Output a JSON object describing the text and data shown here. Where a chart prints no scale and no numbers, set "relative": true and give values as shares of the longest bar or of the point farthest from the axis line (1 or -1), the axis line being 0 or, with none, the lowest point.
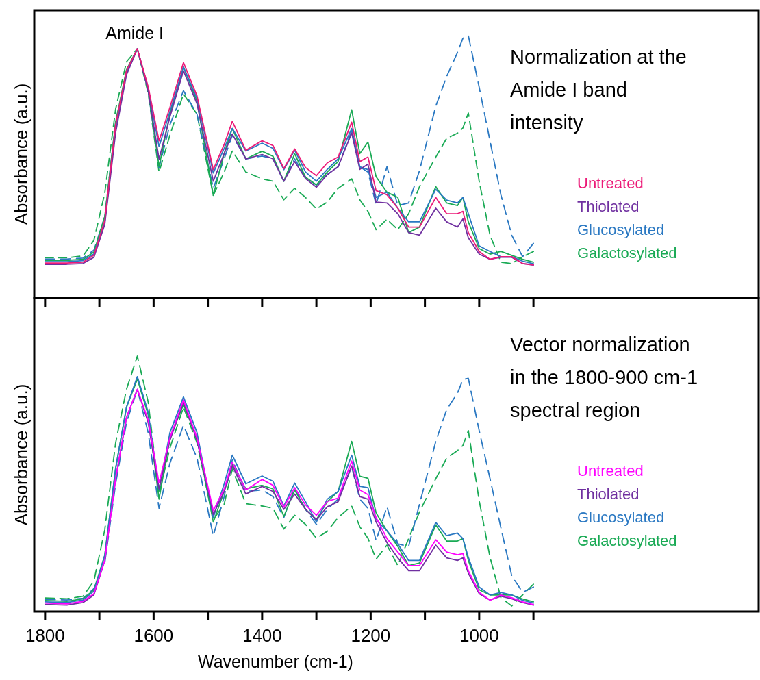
{
  "chart_data": [
    {
      "type": "line",
      "relative": true,
      "ylabel": "Absorbance  (a.u.)",
      "xlim": [
        1820,
        485
      ],
      "xticks": [
        {
          "value": 1800,
          "label": null
        },
        {
          "value": 1700,
          "label": null
        },
        {
          "value": 1600,
          "label": null
        },
        {
          "value": 1500,
          "label": null
        },
        {
          "value": 1400,
          "label": null
        },
        {
          "value": 1300,
          "label": null
        },
        {
          "value": 1200,
          "label": null
        },
        {
          "value": 1100,
          "label": null
        },
        {
          "value": 1000,
          "label": null
        },
        {
          "value": 900,
          "label": null
        }
      ],
      "tick_labels": false,
      "legend": "right",
      "line_style": "solid",
      "annotations": [
        {
          "text": "Amide I",
          "x": 1635,
          "y": 0.95
        },
        "Normalization at the Amide I band intensity"
      ],
      "x": [
        1800,
        1760,
        1730,
        1710,
        1690,
        1670,
        1650,
        1630,
        1610,
        1590,
        1570,
        1545,
        1520,
        1490,
        1470,
        1455,
        1430,
        1400,
        1380,
        1360,
        1340,
        1320,
        1300,
        1280,
        1260,
        1235,
        1220,
        1205,
        1190,
        1170,
        1150,
        1130,
        1110,
        1080,
        1060,
        1040,
        1030,
        1020,
        1000,
        980,
        960,
        940,
        920,
        900
      ],
      "series": [
        {
          "name": "Untreated",
          "color": "#ec1a78",
          "values": [
            0.133,
            0.133,
            0.136,
            0.163,
            0.295,
            0.66,
            0.866,
            0.95,
            0.805,
            0.599,
            0.726,
            0.897,
            0.77,
            0.489,
            0.585,
            0.673,
            0.563,
            0.599,
            0.581,
            0.493,
            0.568,
            0.497,
            0.466,
            0.515,
            0.537,
            0.67,
            0.52,
            0.537,
            0.409,
            0.393,
            0.342,
            0.27,
            0.27,
            0.383,
            0.321,
            0.321,
            0.33,
            0.249,
            0.177,
            0.147,
            0.157,
            0.157,
            0.131,
            0.126
          ]
        },
        {
          "name": "Thiolated",
          "color": "#7030a0",
          "values": [
            0.128,
            0.128,
            0.131,
            0.155,
            0.28,
            0.63,
            0.85,
            0.95,
            0.79,
            0.529,
            0.69,
            0.866,
            0.74,
            0.445,
            0.55,
            0.625,
            0.53,
            0.547,
            0.53,
            0.445,
            0.52,
            0.455,
            0.422,
            0.47,
            0.5,
            0.629,
            0.49,
            0.51,
            0.365,
            0.362,
            0.321,
            0.249,
            0.239,
            0.342,
            0.29,
            0.27,
            0.301,
            0.229,
            0.167,
            0.147,
            0.155,
            0.155,
            0.131,
            0.125
          ]
        },
        {
          "name": "Glucosylated",
          "color": "#2a78c2",
          "values": [
            0.138,
            0.138,
            0.142,
            0.168,
            0.29,
            0.65,
            0.86,
            0.95,
            0.8,
            0.577,
            0.71,
            0.88,
            0.76,
            0.476,
            0.57,
            0.646,
            0.56,
            0.59,
            0.57,
            0.489,
            0.563,
            0.48,
            0.445,
            0.49,
            0.53,
            0.646,
            0.5,
            0.489,
            0.383,
            0.403,
            0.342,
            0.29,
            0.29,
            0.414,
            0.373,
            0.362,
            0.383,
            0.321,
            0.198,
            0.177,
            0.157,
            0.157,
            0.14,
            0.13
          ]
        },
        {
          "name": "Galactosylated",
          "color": "#1aaa55",
          "values": [
            0.143,
            0.143,
            0.147,
            0.175,
            0.31,
            0.67,
            0.87,
            0.95,
            0.79,
            0.501,
            0.7,
            0.88,
            0.75,
            0.391,
            0.55,
            0.646,
            0.53,
            0.559,
            0.54,
            0.445,
            0.55,
            0.46,
            0.431,
            0.48,
            0.52,
            0.717,
            0.55,
            0.594,
            0.462,
            0.403,
            0.383,
            0.249,
            0.27,
            0.424,
            0.362,
            0.352,
            0.383,
            0.29,
            0.188,
            0.167,
            0.177,
            0.162,
            0.147,
            0.136
          ]
        },
        {
          "color": "#2a78c2",
          "line_style": "dashed",
          "values": [
            0.148,
            0.148,
            0.152,
            0.182,
            0.31,
            0.67,
            0.86,
            0.95,
            0.79,
            0.497,
            0.66,
            0.79,
            0.7,
            0.418,
            0.53,
            0.62,
            0.53,
            0.541,
            0.53,
            0.445,
            0.53,
            0.46,
            0.43,
            0.47,
            0.5,
            0.637,
            0.5,
            0.48,
            0.356,
            0.5,
            0.352,
            0.362,
            0.485,
            0.731,
            0.844,
            0.936,
            0.99,
            1.0,
            0.803,
            0.598,
            0.393,
            0.239,
            0.157,
            0.208
          ]
        },
        {
          "color": "#1aaa55",
          "line_style": "dashed",
          "values": [
            0.153,
            0.153,
            0.16,
            0.22,
            0.4,
            0.72,
            0.9,
            0.95,
            0.78,
            0.48,
            0.62,
            0.778,
            0.7,
            0.391,
            0.48,
            0.56,
            0.48,
            0.454,
            0.445,
            0.374,
            0.418,
            0.383,
            0.339,
            0.365,
            0.418,
            0.454,
            0.374,
            0.33,
            0.26,
            0.3,
            0.26,
            0.321,
            0.424,
            0.537,
            0.608,
            0.628,
            0.648,
            0.705,
            0.444,
            0.239,
            0.136,
            0.131,
            0.157,
            0.177
          ]
        }
      ]
    },
    {
      "type": "line",
      "relative": true,
      "xlabel": "Wavenumber (cm-1)",
      "ylabel": "Absorbance  (a.u.)",
      "xlim": [
        1820,
        485
      ],
      "xticks": [
        1800,
        {
          "value": 1700,
          "label": null
        },
        1600,
        {
          "value": 1500,
          "label": null
        },
        1400,
        {
          "value": 1300,
          "label": null
        },
        1200,
        {
          "value": 1100,
          "label": null
        },
        1000,
        {
          "value": 900,
          "label": null
        }
      ],
      "tick_labels": "x",
      "legend": "right",
      "line_style": "solid",
      "annotations": [
        "Vector normalization in the 1800-900 cm-1 spectral region"
      ],
      "x": [
        1800,
        1760,
        1730,
        1710,
        1690,
        1670,
        1650,
        1630,
        1610,
        1590,
        1570,
        1545,
        1520,
        1490,
        1470,
        1455,
        1430,
        1400,
        1380,
        1360,
        1340,
        1320,
        1300,
        1280,
        1260,
        1235,
        1220,
        1205,
        1190,
        1170,
        1150,
        1130,
        1110,
        1080,
        1060,
        1040,
        1030,
        1020,
        1000,
        980,
        960,
        940,
        920,
        900
      ],
      "series": [
        {
          "name": "Untreated",
          "color": "#ff00ff",
          "values": [
            0.033,
            0.03,
            0.04,
            0.07,
            0.2,
            0.52,
            0.76,
            0.87,
            0.75,
            0.503,
            0.68,
            0.828,
            0.68,
            0.395,
            0.48,
            0.585,
            0.476,
            0.517,
            0.494,
            0.409,
            0.485,
            0.417,
            0.377,
            0.431,
            0.444,
            0.589,
            0.476,
            0.458,
            0.368,
            0.286,
            0.233,
            0.18,
            0.18,
            0.281,
            0.233,
            0.222,
            0.227,
            0.16,
            0.075,
            0.044,
            0.065,
            0.054,
            0.038,
            0.027
          ]
        },
        {
          "name": "Thiolated",
          "color": "#7030a0",
          "values": [
            0.028,
            0.025,
            0.035,
            0.065,
            0.2,
            0.52,
            0.76,
            0.87,
            0.74,
            0.48,
            0.67,
            0.82,
            0.67,
            0.38,
            0.47,
            0.57,
            0.46,
            0.49,
            0.47,
            0.4,
            0.46,
            0.4,
            0.36,
            0.41,
            0.43,
            0.57,
            0.45,
            0.44,
            0.35,
            0.27,
            0.21,
            0.16,
            0.16,
            0.26,
            0.21,
            0.2,
            0.21,
            0.15,
            0.07,
            0.045,
            0.06,
            0.05,
            0.035,
            0.025
          ]
        },
        {
          "name": "Glucosylated",
          "color": "#2a78c2",
          "values": [
            0.038,
            0.035,
            0.045,
            0.08,
            0.22,
            0.56,
            0.8,
            0.92,
            0.78,
            0.476,
            0.7,
            0.84,
            0.7,
            0.368,
            0.5,
            0.612,
            0.5,
            0.531,
            0.51,
            0.413,
            0.503,
            0.43,
            0.35,
            0.44,
            0.47,
            0.612,
            0.49,
            0.485,
            0.36,
            0.316,
            0.265,
            0.2,
            0.2,
            0.349,
            0.297,
            0.307,
            0.286,
            0.212,
            0.096,
            0.065,
            0.075,
            0.065,
            0.044,
            0.033
          ]
        },
        {
          "name": "Galactosylated",
          "color": "#1aaa55",
          "values": [
            0.043,
            0.04,
            0.05,
            0.085,
            0.22,
            0.56,
            0.8,
            0.91,
            0.77,
            0.44,
            0.68,
            0.81,
            0.68,
            0.35,
            0.47,
            0.576,
            0.48,
            0.494,
            0.48,
            0.372,
            0.476,
            0.4,
            0.36,
            0.43,
            0.47,
            0.666,
            0.53,
            0.522,
            0.386,
            0.316,
            0.255,
            0.18,
            0.19,
            0.339,
            0.276,
            0.276,
            0.286,
            0.2,
            0.085,
            0.065,
            0.065,
            0.065,
            0.049,
            0.038
          ]
        },
        {
          "color": "#2a78c2",
          "line_style": "dashed",
          "values": [
            0.048,
            0.045,
            0.052,
            0.09,
            0.19,
            0.5,
            0.74,
            0.87,
            0.7,
            0.404,
            0.58,
            0.729,
            0.6,
            0.296,
            0.45,
            0.594,
            0.47,
            0.476,
            0.45,
            0.368,
            0.485,
            0.4,
            0.341,
            0.4,
            0.44,
            0.567,
            0.44,
            0.404,
            0.278,
            0.41,
            0.265,
            0.255,
            0.42,
            0.666,
            0.79,
            0.855,
            0.908,
            0.913,
            0.708,
            0.52,
            0.328,
            0.14,
            0.075,
            0.096
          ]
        },
        {
          "color": "#1aaa55",
          "line_style": "dashed",
          "values": [
            0.053,
            0.05,
            0.06,
            0.12,
            0.32,
            0.66,
            0.87,
            1.0,
            0.82,
            0.46,
            0.64,
            0.8,
            0.66,
            0.36,
            0.42,
            0.558,
            0.422,
            0.413,
            0.404,
            0.323,
            0.377,
            0.341,
            0.287,
            0.314,
            0.368,
            0.413,
            0.332,
            0.287,
            0.205,
            0.26,
            0.18,
            0.286,
            0.39,
            0.52,
            0.6,
            0.63,
            0.65,
            0.708,
            0.434,
            0.212,
            0.054,
            0.022,
            0.065,
            0.107
          ]
        }
      ]
    }
  ]
}
